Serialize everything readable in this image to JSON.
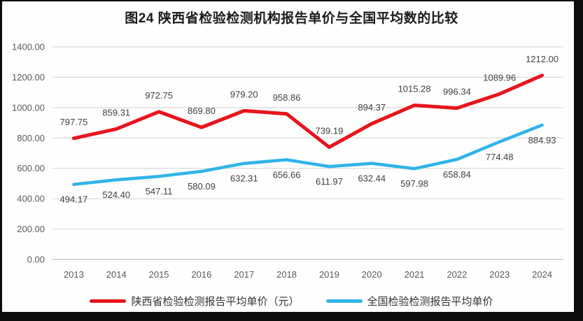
{
  "title": "图24 陕西省检验检测机构报告单价与全国平均数的比较",
  "chart_data": {
    "type": "line",
    "categories": [
      "2013",
      "2014",
      "2015",
      "2016",
      "2017",
      "2018",
      "2019",
      "2020",
      "2021",
      "2022",
      "2023",
      "2024"
    ],
    "series": [
      {
        "name": "陕西省检验检测报告平均单价（元）",
        "color": "#e8131c",
        "values": [
          797.75,
          859.31,
          972.75,
          869.8,
          979.2,
          958.86,
          739.19,
          894.37,
          1015.28,
          996.34,
          1089.96,
          1212.0
        ],
        "data_labels": "above"
      },
      {
        "name": "全国检验检测报告平均单价",
        "color": "#2fb4e8",
        "values": [
          494.17,
          524.4,
          547.11,
          580.09,
          632.31,
          656.66,
          611.97,
          632.44,
          597.98,
          658.84,
          774.48,
          884.93
        ],
        "data_labels": "below"
      }
    ],
    "ylim": [
      0,
      1400
    ],
    "ytick_step": 200,
    "ytick_labels": [
      "0.00",
      "200.00",
      "400.00",
      "600.00",
      "800.00",
      "1000.00",
      "1200.00",
      "1400.00"
    ],
    "xlabel": "",
    "ylabel": "",
    "grid": "horizontal",
    "legend_position": "bottom",
    "value_label_format": "0.00"
  },
  "colors": {
    "grid": "#d9d9d9",
    "axis": "#bfbfbf",
    "tick_text": "#595959",
    "value_label_text": "#404040",
    "title_text": "#1a1a1a",
    "legend_text": "#333333"
  }
}
